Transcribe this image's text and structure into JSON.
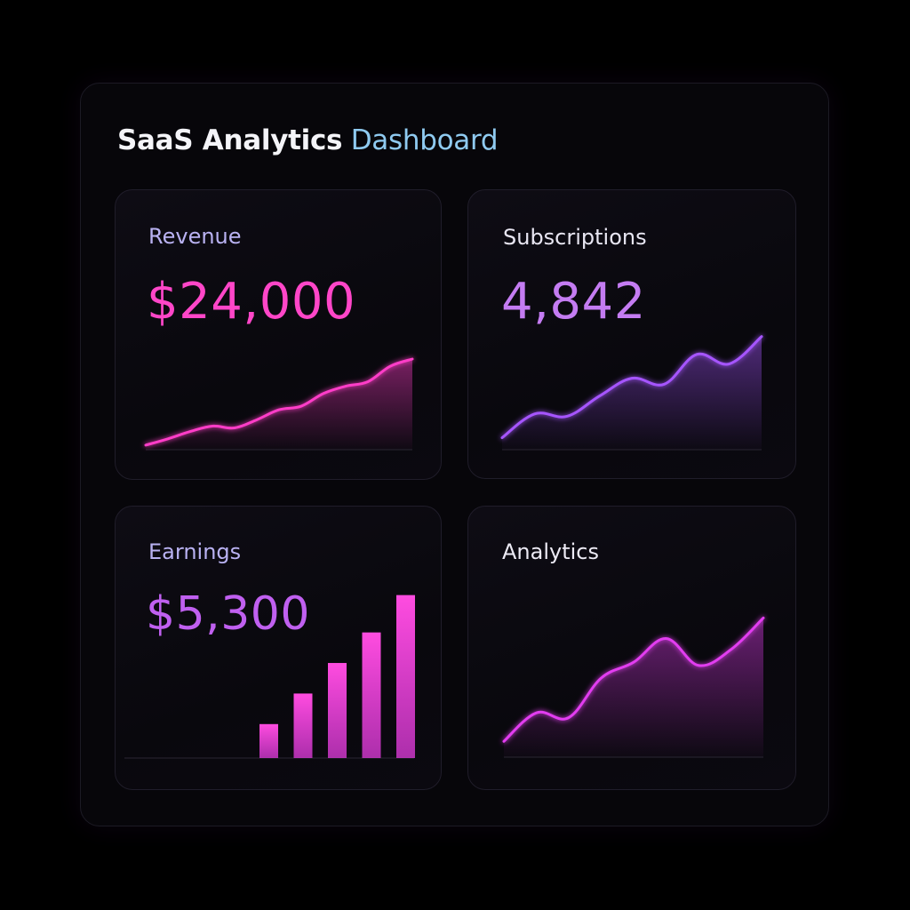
{
  "header": {
    "title_bold": "SaaS Analytics",
    "title_light": "Dashboard"
  },
  "cards": {
    "revenue": {
      "label": "Revenue",
      "value": "$24,000",
      "label_color": "#b9b2f2",
      "value_color": "#ff46c8",
      "line_color": "#ff3cc8",
      "chart_type": "area"
    },
    "subscriptions": {
      "label": "Subscriptions",
      "value": "4,842",
      "label_color": "#e8e6f2",
      "value_color": "#c47cf2",
      "line_color": "#a655ff",
      "chart_type": "area"
    },
    "earnings": {
      "label": "Earnings",
      "value": "$5,300",
      "label_color": "#b9b2f2",
      "value_color": "#c060f0",
      "bar_color": "#e43ce0",
      "chart_type": "bar"
    },
    "analytics": {
      "label": "Analytics",
      "label_color": "#eceaf4",
      "line_color": "#e23cf0",
      "chart_type": "area"
    }
  },
  "chart_data": [
    {
      "type": "area",
      "series": [
        {
          "values": [
            5,
            12,
            20,
            26,
            24,
            33,
            44,
            48,
            62,
            70,
            75,
            92,
            100
          ]
        }
      ]
    },
    {
      "type": "area",
      "series": [
        {
          "values": [
            10,
            30,
            28,
            45,
            60,
            55,
            80,
            72,
            95
          ]
        }
      ]
    },
    {
      "type": "bar",
      "series": [
        {
          "values": [
            20,
            38,
            56,
            74,
            96
          ]
        }
      ]
    },
    {
      "type": "area",
      "series": [
        {
          "values": [
            10,
            28,
            25,
            50,
            60,
            75,
            58,
            68,
            88
          ]
        }
      ]
    }
  ]
}
